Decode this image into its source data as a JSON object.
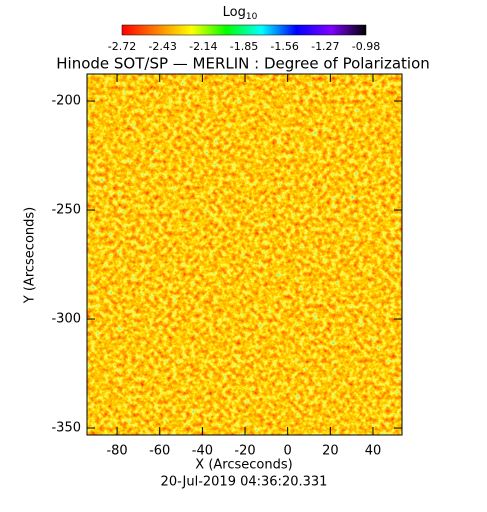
{
  "chart_data": {
    "type": "heatmap",
    "title": "Hinode SOT/SP — MERLIN : Degree of Polarization",
    "x_label": "X (Arcseconds)",
    "y_label": "Y (Arcseconds)",
    "footer": "20-Jul-2019 04:36:20.331",
    "xlim": [
      -94.1,
      53.6
    ],
    "xticks": [
      -80,
      -60,
      -40,
      -20,
      0,
      20,
      40
    ],
    "ylim": [
      -353.2,
      -187.6
    ],
    "yticks": [
      -200,
      -250,
      -300,
      -350
    ],
    "colorbar": {
      "label": "Log",
      "label_sub": "10",
      "lim": [
        -2.72,
        -0.98
      ],
      "ticks": [
        -2.72,
        -2.43,
        -2.14,
        -1.85,
        -1.56,
        -1.27,
        -0.98
      ],
      "colors": [
        "#ff0000",
        "#ff8000",
        "#ffff00",
        "#00ff00",
        "#00ffff",
        "#0000ff",
        "#8000ff",
        "#000000"
      ]
    }
  }
}
